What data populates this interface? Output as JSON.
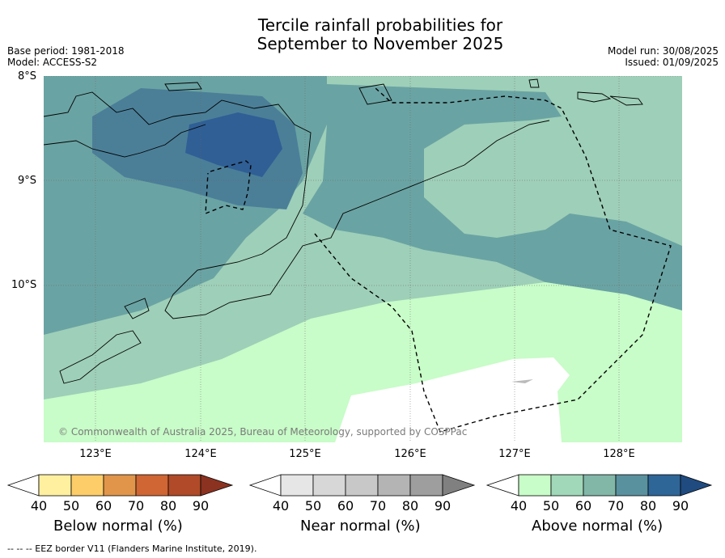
{
  "title_line1": "Tercile rainfall probabilities for",
  "title_line2": "September to November 2025",
  "base_period": "Base period: 1981-2018",
  "model": "Model: ACCESS-S2",
  "model_run": "Model run: 30/08/2025",
  "issued": "Issued: 01/09/2025",
  "lat_labels": [
    "8°S",
    "9°S",
    "10°S"
  ],
  "lon_labels": [
    "123°E",
    "124°E",
    "125°E",
    "126°E",
    "127°E",
    "128°E"
  ],
  "copyright": "© Commonwealth of Australia 2025, Bureau of Meteorology, supported by COSPPac",
  "colorbars": [
    {
      "label": "Below normal (%)",
      "ticks": [
        "40",
        "50",
        "60",
        "70",
        "80",
        "90"
      ],
      "colors": [
        "#ffffff",
        "#fff0a0",
        "#fdcd6a",
        "#e0954a",
        "#cf6634",
        "#b04a28",
        "#8b3220"
      ]
    },
    {
      "label": "Near normal (%)",
      "ticks": [
        "40",
        "50",
        "60",
        "70",
        "80",
        "90"
      ],
      "colors": [
        "#ffffff",
        "#e6e6e6",
        "#d7d7d7",
        "#c8c8c8",
        "#b4b4b4",
        "#9e9e9e",
        "#808080"
      ]
    },
    {
      "label": "Above normal (%)",
      "ticks": [
        "40",
        "50",
        "60",
        "70",
        "80",
        "90"
      ],
      "colors": [
        "#ffffff",
        "#c8fcc8",
        "#a1d8b9",
        "#82b7a8",
        "#5a919e",
        "#2f6698",
        "#1f4b80"
      ]
    }
  ],
  "footer": "--  --  -- EEZ border V11 (Flanders Marine Institute, 2019)."
}
